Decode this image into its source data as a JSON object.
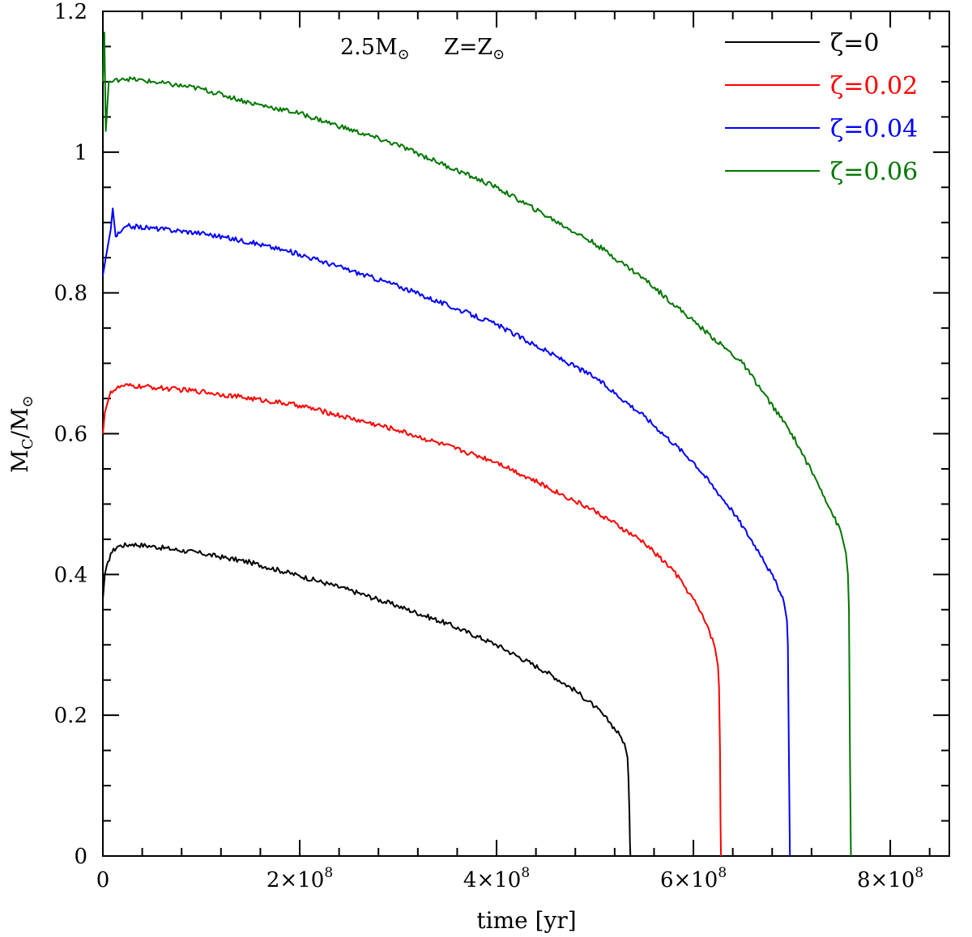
{
  "chart_data": {
    "type": "line",
    "title": "",
    "annotation": {
      "mass": "2.5M",
      "mass_sub": "⊙",
      "metal": "Z=Z",
      "metal_sub": "⊙"
    },
    "xlabel": "time [yr]",
    "ylabel": {
      "main": "M",
      "sub1": "C",
      "slash": "/M",
      "sub2": "⊙"
    },
    "xlim": [
      0,
      860000000
    ],
    "ylim": [
      0,
      1.2
    ],
    "xticks_major": [
      {
        "value": 0,
        "label": "0"
      },
      {
        "value": 200000000,
        "label": "2×10",
        "exp": "8"
      },
      {
        "value": 400000000,
        "label": "4×10",
        "exp": "8"
      },
      {
        "value": 600000000,
        "label": "6×10",
        "exp": "8"
      },
      {
        "value": 800000000,
        "label": "8×10",
        "exp": "8"
      }
    ],
    "xtick_minor_step": 40000000,
    "yticks_major": [
      {
        "value": 0,
        "label": "0"
      },
      {
        "value": 0.2,
        "label": "0.2"
      },
      {
        "value": 0.4,
        "label": "0.4"
      },
      {
        "value": 0.6,
        "label": "0.6"
      },
      {
        "value": 0.8,
        "label": "0.8"
      },
      {
        "value": 1.0,
        "label": "1"
      },
      {
        "value": 1.2,
        "label": "1.2"
      }
    ],
    "ytick_minor_step": 0.05,
    "grid": false,
    "legend_position": "top-right",
    "series": [
      {
        "name": "ζ=0",
        "color": "#000000",
        "x": [
          0,
          2000000,
          8000000,
          15000000,
          30000000,
          50000000,
          100000000,
          150000000,
          200000000,
          250000000,
          300000000,
          350000000,
          400000000,
          450000000,
          480000000,
          500000000,
          515000000,
          525000000,
          530000000,
          533000000,
          534000000,
          535000000,
          535500000,
          536000000
        ],
        "y": [
          0.365,
          0.4,
          0.43,
          0.44,
          0.443,
          0.44,
          0.43,
          0.417,
          0.398,
          0.378,
          0.355,
          0.33,
          0.3,
          0.262,
          0.235,
          0.212,
          0.19,
          0.172,
          0.16,
          0.14,
          0.11,
          0.06,
          0.02,
          0.0
        ]
      },
      {
        "name": "ζ=0.02",
        "color": "#ff0000",
        "x": [
          0,
          2000000,
          8000000,
          20000000,
          40000000,
          100000000,
          200000000,
          300000000,
          400000000,
          500000000,
          550000000,
          580000000,
          600000000,
          615000000,
          622000000,
          625000000,
          626000000,
          627000000,
          627500000,
          628000000
        ],
        "y": [
          0.6,
          0.63,
          0.66,
          0.668,
          0.667,
          0.66,
          0.64,
          0.605,
          0.56,
          0.49,
          0.445,
          0.405,
          0.365,
          0.325,
          0.295,
          0.27,
          0.24,
          0.15,
          0.05,
          0.0
        ]
      },
      {
        "name": "ζ=0.04",
        "color": "#0000ff",
        "x": [
          0,
          3000000,
          8000000,
          10000000,
          13000000,
          17000000,
          25000000,
          50000000,
          100000000,
          150000000,
          200000000,
          300000000,
          400000000,
          500000000,
          550000000,
          600000000,
          640000000,
          670000000,
          685000000,
          692000000,
          695000000,
          696000000,
          697000000,
          698000000
        ],
        "y": [
          0.825,
          0.85,
          0.89,
          0.92,
          0.88,
          0.885,
          0.895,
          0.892,
          0.885,
          0.872,
          0.855,
          0.81,
          0.755,
          0.68,
          0.625,
          0.56,
          0.49,
          0.425,
          0.385,
          0.36,
          0.335,
          0.3,
          0.15,
          0.0
        ]
      },
      {
        "name": "ζ=0.06",
        "color": "#007700",
        "x": [
          0,
          1500000,
          3000000,
          6000000,
          10000000,
          20000000,
          50000000,
          100000000,
          150000000,
          200000000,
          300000000,
          400000000,
          500000000,
          550000000,
          600000000,
          650000000,
          700000000,
          730000000,
          750000000,
          755000000,
          757000000,
          758000000,
          759000000,
          760000000
        ],
        "y": [
          1.1,
          1.17,
          1.03,
          1.1,
          1.1,
          1.105,
          1.1,
          1.09,
          1.07,
          1.055,
          1.01,
          0.95,
          0.87,
          0.82,
          0.76,
          0.7,
          0.6,
          0.52,
          0.46,
          0.43,
          0.4,
          0.35,
          0.15,
          0.0
        ]
      }
    ]
  }
}
